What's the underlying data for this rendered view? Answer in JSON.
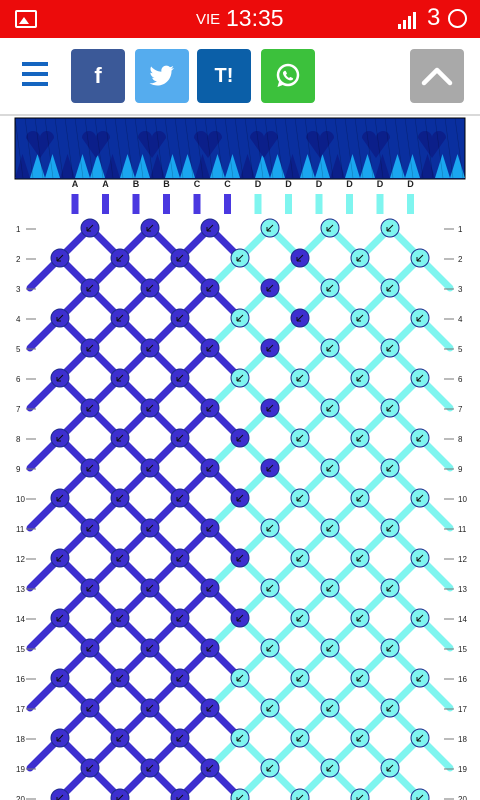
{
  "status_bar": {
    "day": "VIE",
    "time": "13:35",
    "network_label": "3",
    "color": "#ec0b0b"
  },
  "toolbar": {
    "menu_icon": "hamburger-icon",
    "facebook_label": "f",
    "twitter_icon": "twitter-bird-icon",
    "tuenti_label": "T!",
    "whatsapp_icon": "whatsapp-icon",
    "scroll_top_icon": "chevron-up-icon"
  },
  "pattern": {
    "strings": [
      "A",
      "A",
      "B",
      "B",
      "C",
      "C",
      "D",
      "D",
      "D",
      "D",
      "D",
      "D"
    ],
    "colors": {
      "A": "#4a38e0",
      "B": "#4a38e0",
      "C": "#4a38e0",
      "D": "#7ff5ef"
    },
    "rows": [
      "1",
      "2",
      "3",
      "4",
      "5",
      "6",
      "7",
      "8",
      "9",
      "10",
      "11",
      "12",
      "13",
      "14",
      "15",
      "16",
      "17",
      "18",
      "19",
      "20"
    ],
    "knot_colors": {
      "dark": "#3d2fcf",
      "light": "#7ff5ef"
    }
  }
}
